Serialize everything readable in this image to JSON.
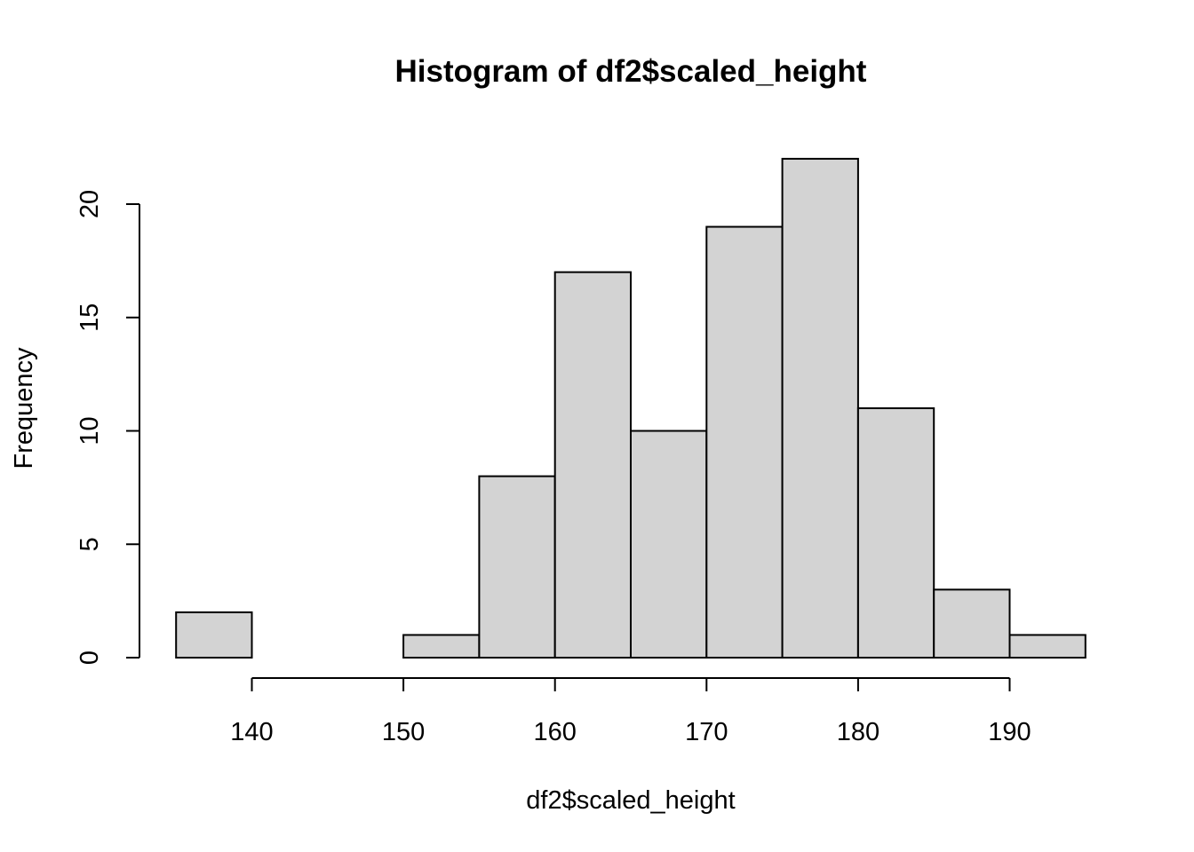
{
  "chart_data": {
    "type": "bar",
    "title": "Histogram of df2$scaled_height",
    "xlabel": "df2$scaled_height",
    "ylabel": "Frequency",
    "bin_edges": [
      135,
      140,
      145,
      150,
      155,
      160,
      165,
      170,
      175,
      180,
      185,
      190,
      195
    ],
    "values": [
      2,
      0,
      0,
      1,
      8,
      17,
      10,
      19,
      22,
      11,
      3,
      1
    ],
    "x_ticks": [
      140,
      150,
      160,
      170,
      180,
      190
    ],
    "y_ticks": [
      0,
      5,
      10,
      15,
      20
    ],
    "xlim": [
      135,
      195
    ],
    "ylim": [
      0,
      22
    ],
    "bar_fill": "#d3d3d3",
    "bar_stroke": "#000000",
    "grid": false
  }
}
